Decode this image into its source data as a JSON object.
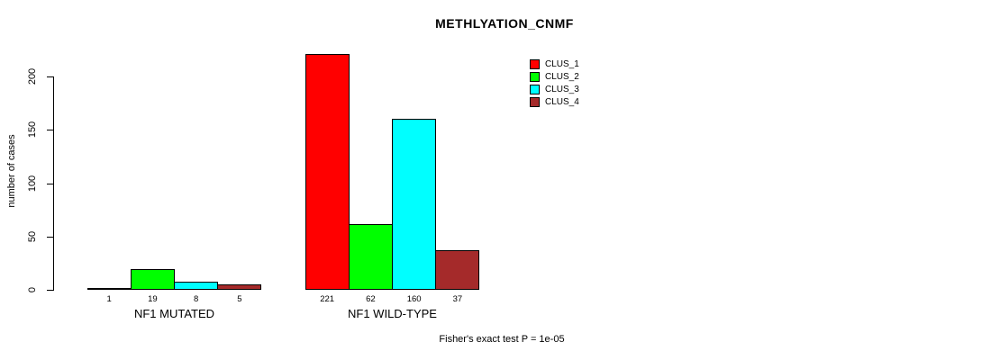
{
  "chart_data": {
    "type": "bar",
    "title": "METHLYATION_CNMF",
    "xlabel": "",
    "ylabel": "number of cases",
    "ylim": [
      0,
      221
    ],
    "yticks": [
      0,
      50,
      100,
      150,
      200
    ],
    "grid": false,
    "legend_position": "top-right",
    "categories": [
      "NF1 MUTATED",
      "NF1 WILD-TYPE"
    ],
    "groups": [
      {
        "label": "NF1 MUTATED",
        "values": [
          1,
          19,
          8,
          5
        ]
      },
      {
        "label": "NF1 WILD-TYPE",
        "values": [
          221,
          62,
          160,
          37
        ]
      }
    ],
    "series": [
      {
        "name": "CLUS_1",
        "color": "#ff0000"
      },
      {
        "name": "CLUS_2",
        "color": "#00ff00"
      },
      {
        "name": "CLUS_3",
        "color": "#00ffff"
      },
      {
        "name": "CLUS_4",
        "color": "#a52a2a"
      }
    ],
    "bar_value_labels_shown": true,
    "annotation": "Fisher's exact test P = 1e-05"
  }
}
